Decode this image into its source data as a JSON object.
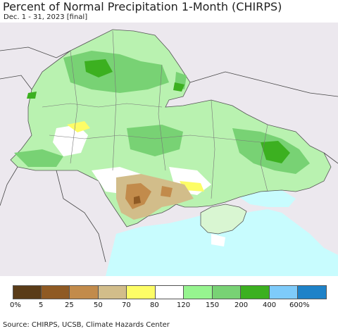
{
  "header": {
    "title": "Percent of Normal Precipitation 1-Month (CHIRPS)",
    "subtitle": "Dec. 1 - 31, 2023 [final]"
  },
  "legend": {
    "colors": [
      "#5a3c18",
      "#8f5a24",
      "#c28b4b",
      "#d2bd8a",
      "#fdfd66",
      "#ffffff",
      "#96f48f",
      "#78d274",
      "#3cb020",
      "#7ecbfa",
      "#1e82c8"
    ],
    "ticks": [
      "0%",
      "5",
      "25",
      "50",
      "70",
      "80",
      "120",
      "150",
      "200",
      "400",
      "600%"
    ]
  },
  "source": "Source: CHIRPS, UCSB, Climate Hazards Center",
  "map": {
    "land_outside_color": "#ece8ee",
    "sea_color": "#c8fcfe"
  }
}
